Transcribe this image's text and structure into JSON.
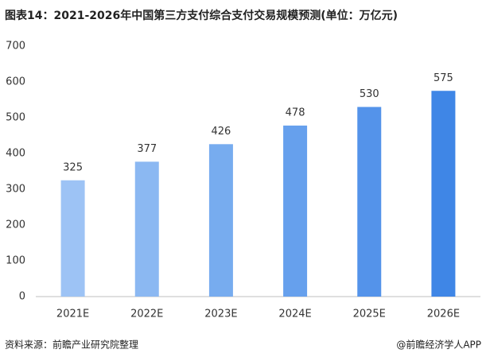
{
  "chart_data": {
    "type": "bar",
    "title": "图表14：2021-2026年中国第三方支付综合支付交易规模预测(单位：万亿元)",
    "categories": [
      "2021E",
      "2022E",
      "2023E",
      "2024E",
      "2025E",
      "2026E"
    ],
    "values": [
      325,
      377,
      426,
      478,
      530,
      575
    ],
    "colors": [
      "#9dc3f5",
      "#8bb8f2",
      "#77acef",
      "#66a0ed",
      "#5493ea",
      "#3f86e6"
    ],
    "ylim": [
      0,
      700
    ],
    "yticks": [
      0,
      100,
      200,
      300,
      400,
      500,
      600,
      700
    ],
    "grid": false,
    "source": "资料来源：前瞻产业研究院整理",
    "credit": "@前瞻经济学人APP"
  }
}
